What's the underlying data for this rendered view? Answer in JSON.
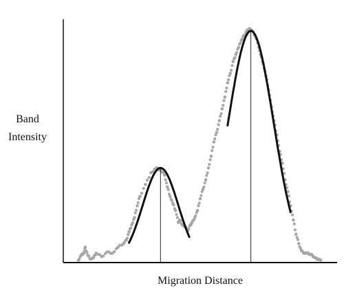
{
  "chart_data": {
    "type": "scatter",
    "title": "",
    "xlabel": "Migration Distance",
    "ylabel_lines": [
      "Band",
      "Intensity"
    ],
    "xlim": [
      0,
      100
    ],
    "ylim": [
      0,
      100
    ],
    "grid": false,
    "legend": "none",
    "colors": {
      "points": "#a6a6a6",
      "fit": "#111111",
      "axis": "#111111",
      "marker": "#222222"
    },
    "series": [
      {
        "role": "measured-profile",
        "x": [
          5.5,
          6.5,
          7.5,
          8.0,
          9.0,
          10.0,
          11.0,
          12.0,
          14.0,
          16.0,
          18.0,
          20.0,
          22.0,
          23.0,
          24.0,
          25.0,
          26.0,
          27.0,
          28.0,
          30.0,
          32.0,
          34.0,
          35.5,
          37.0,
          38.0,
          39.0,
          40.0,
          41.0,
          42.0,
          42.5,
          43.5,
          44.5,
          45.5,
          46.5,
          47.0,
          48.0,
          49.0,
          50.0,
          51.0,
          52.0,
          53.0,
          54.0,
          55.0,
          56.0,
          57.0,
          58.0,
          59.0,
          60.0,
          61.0,
          62.0,
          63.0,
          64.0,
          65.0,
          66.0,
          67.0,
          68.0,
          69.0,
          70.0,
          71.0,
          72.0,
          73.0,
          74.0,
          75.0,
          76.0,
          77.0,
          78.0,
          79.0,
          80.0,
          81.0,
          82.0,
          83.0,
          84.0,
          85.0,
          86.0,
          87.0,
          88.0,
          89.0,
          90.0,
          91.0,
          92.0,
          93.0,
          94.0
        ],
        "y": [
          1.0,
          3.0,
          4.0,
          6.5,
          3.0,
          1.5,
          2.0,
          4.0,
          2.5,
          4.5,
          4.0,
          6.5,
          8.0,
          9.5,
          13.0,
          16.0,
          19.0,
          24.0,
          28.0,
          33.0,
          38.0,
          40.0,
          39.0,
          37.0,
          32.0,
          28.0,
          25.0,
          22.0,
          17.0,
          18.0,
          16.0,
          15.0,
          13.5,
          16.0,
          17.0,
          19.0,
          22.0,
          27.0,
          31.0,
          35.0,
          40.0,
          45.0,
          51.0,
          55.0,
          60.0,
          65.0,
          70.0,
          76.0,
          80.0,
          85.0,
          88.0,
          91.0,
          94.0,
          96.0,
          98.0,
          99.0,
          98.0,
          96.0,
          93.0,
          88.0,
          84.0,
          79.0,
          73.0,
          66.0,
          60.0,
          54.0,
          47.0,
          42.0,
          35.0,
          30.0,
          24.0,
          18.0,
          12.0,
          8.0,
          5.0,
          4.0,
          4.0,
          3.5,
          3.0,
          2.0,
          1.5,
          1.0
        ]
      },
      {
        "role": "fit-peak-1",
        "center": 35.5,
        "peak": 40.0,
        "x_range": [
          24.0,
          46.0
        ],
        "width": 6.5
      },
      {
        "role": "fit-peak-2",
        "center": 68.5,
        "peak": 98.0,
        "x_range": [
          60.0,
          83.0
        ],
        "width": 8.3
      }
    ],
    "vertical_markers": [
      35.5,
      68.5
    ]
  }
}
